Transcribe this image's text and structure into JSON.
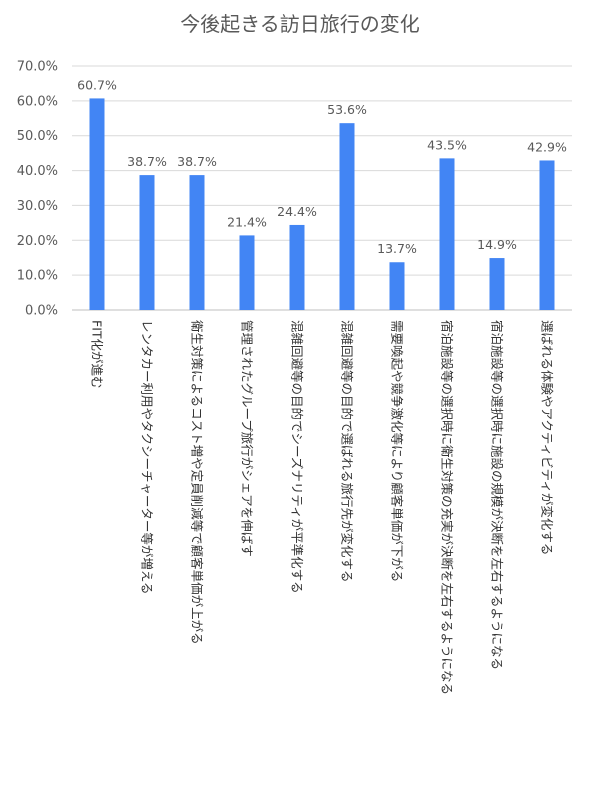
{
  "chart_data": {
    "type": "bar",
    "title": "今後起きる訪日旅行の変化",
    "categories": [
      "FIT化が進む",
      "レンタカー利用やタクシーチャーター等が増える",
      "衛生対策によるコスト増や定員削減等で顧客単価が上がる",
      "管理されたグループ旅行がシェアを伸ばす",
      "混雑回避等の目的でシーズナリティが平準化する",
      "混雑回避等の目的で選ばれる旅行先が変化する",
      "需要喚起や競争激化等により顧客単価が下がる",
      "宿泊施設等の選択時に衛生対策の充実が決断を左右するようになる",
      "宿泊施設等の選択時に施設の規模が決断を左右するようになる",
      "選ばれる体験やアクティビティが変化する"
    ],
    "values": [
      60.7,
      38.7,
      38.7,
      21.4,
      24.4,
      53.6,
      13.7,
      43.5,
      14.9,
      42.9
    ],
    "value_labels": [
      "60.7%",
      "38.7%",
      "38.7%",
      "21.4%",
      "24.4%",
      "53.6%",
      "13.7%",
      "43.5%",
      "14.9%",
      "42.9%"
    ],
    "y_ticks": [
      "0.0%",
      "10.0%",
      "20.0%",
      "30.0%",
      "40.0%",
      "50.0%",
      "60.0%",
      "70.0%"
    ],
    "ylim": [
      0,
      70
    ],
    "grid": true,
    "bar_color": "#4285F4",
    "grid_color": "#d9d9d9"
  }
}
